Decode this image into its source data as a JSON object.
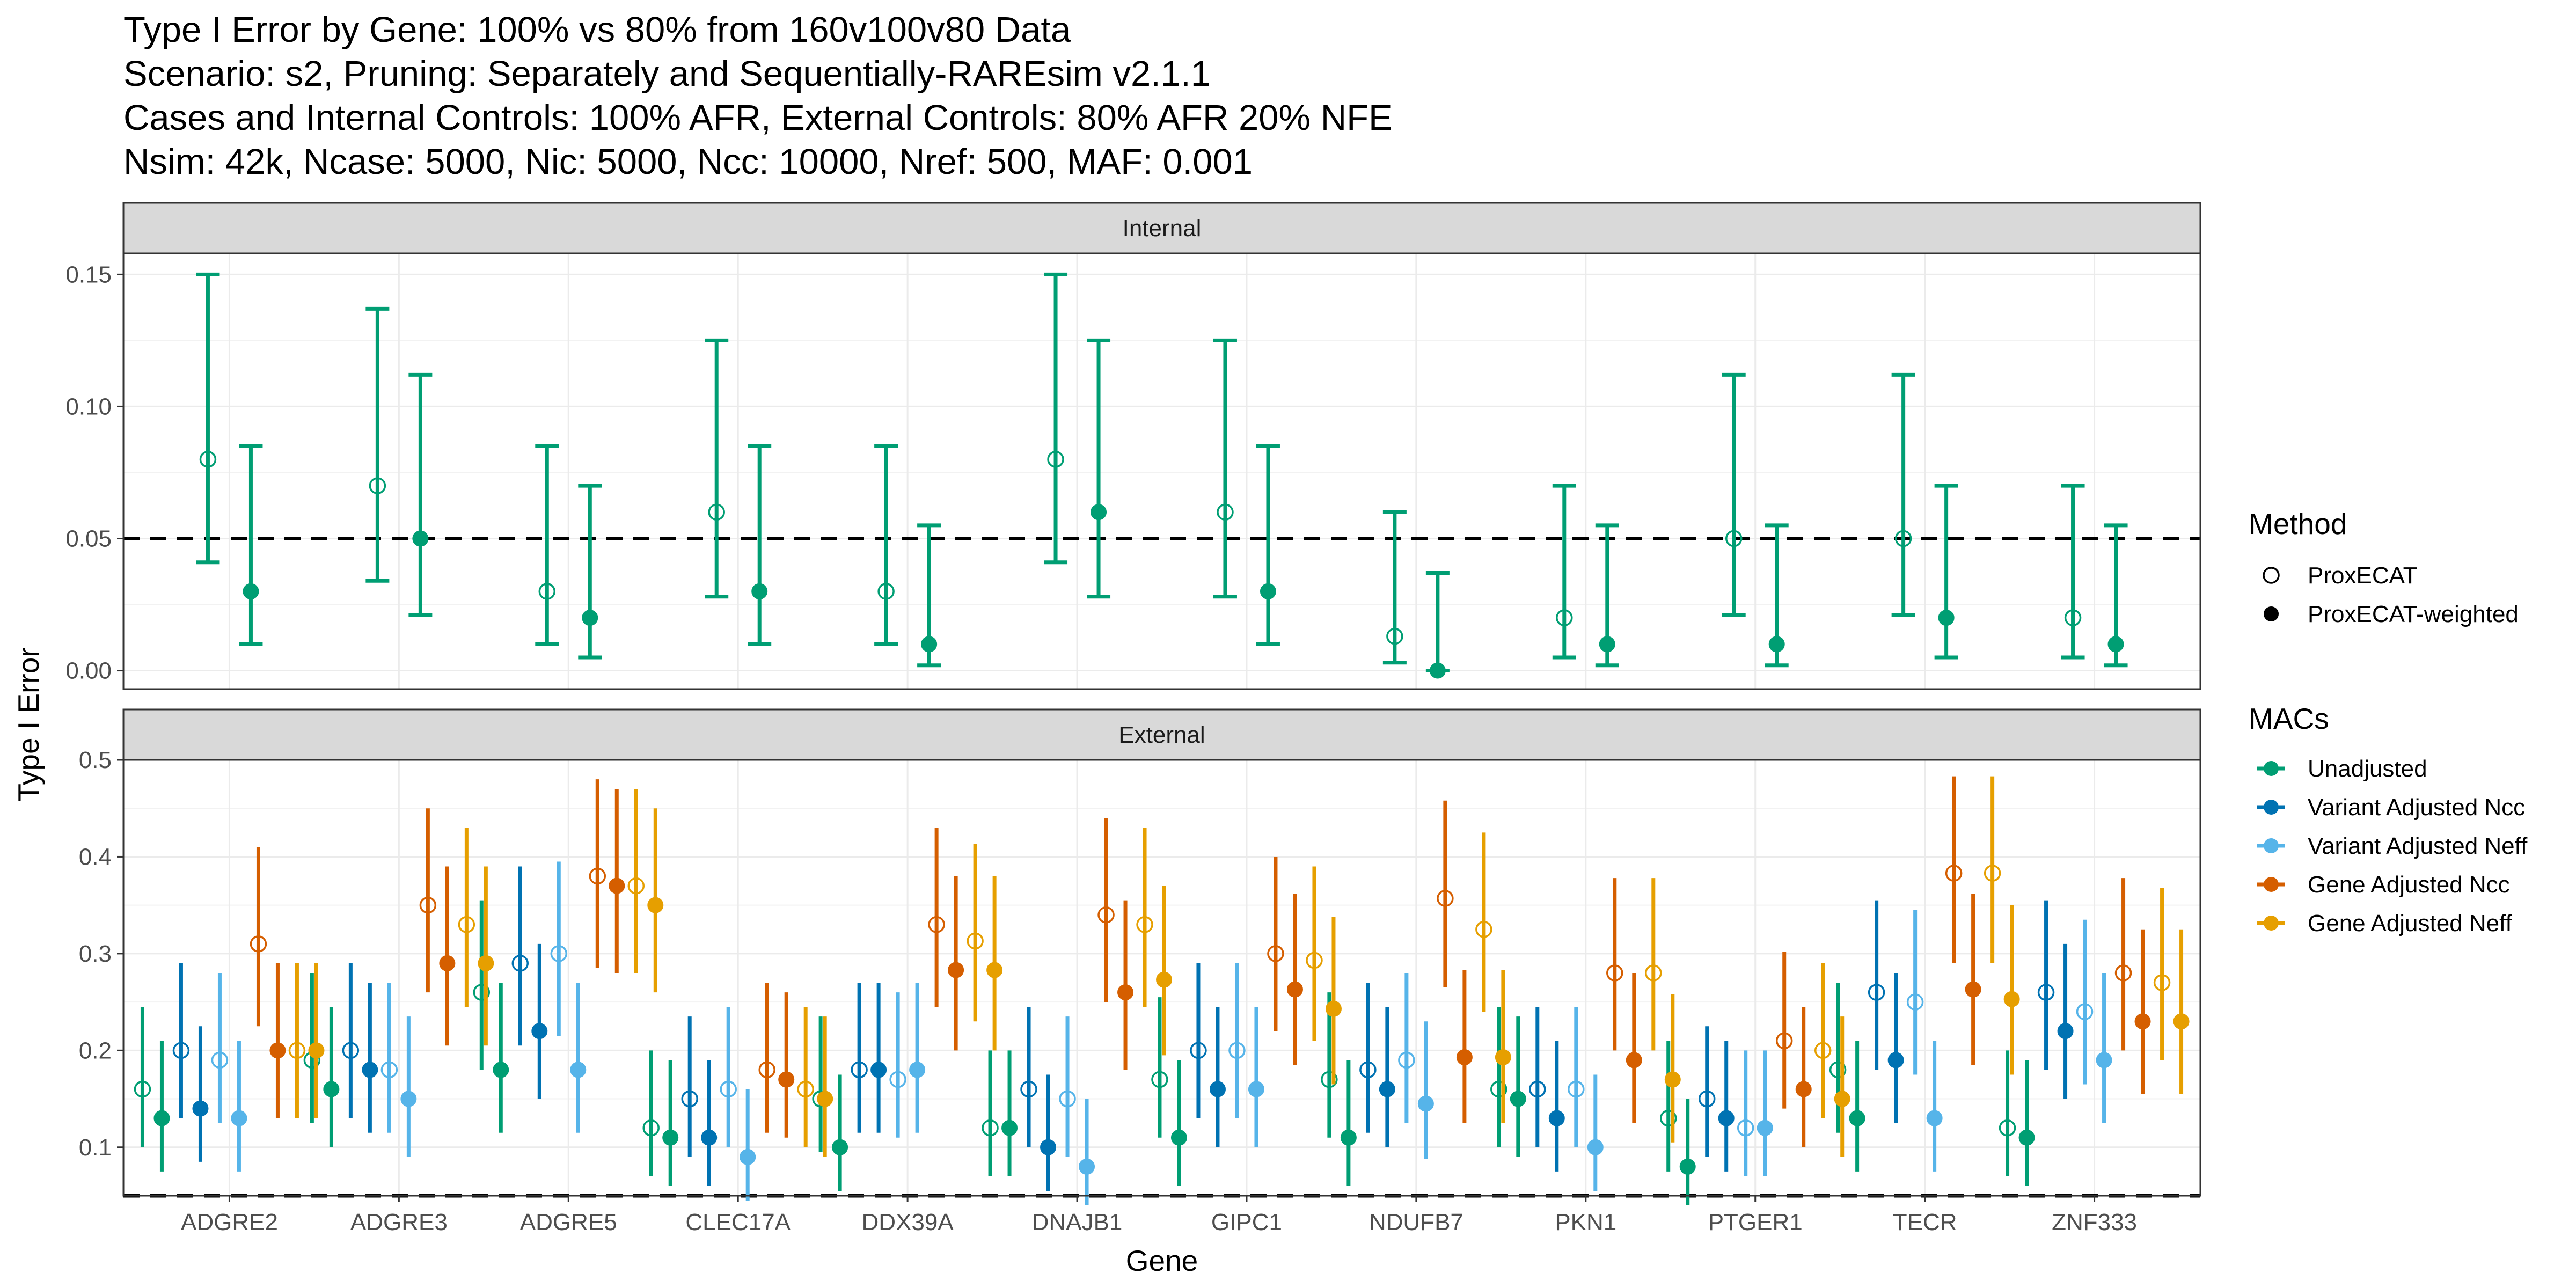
{
  "chart_data": {
    "type": "scatter",
    "title_lines": [
      "Type I Error by Gene: 100% vs 80% from 160v100v80 Data",
      "Scenario: s2, Pruning: Separately and Sequentially-RAREsim v2.1.1",
      "Cases and Internal Controls: 100% AFR, External Controls: 80% AFR 20% NFE",
      "Nsim: 42k, Ncase: 5000, Nic: 5000, Ncc: 10000, Nref: 500, MAF: 0.001"
    ],
    "xlabel": "Gene",
    "ylabel": "Type I Error",
    "categories": [
      "ADGRE2",
      "ADGRE3",
      "ADGRE5",
      "CLEC17A",
      "DDX39A",
      "DNAJB1",
      "GIPC1",
      "NDUFB7",
      "PKN1",
      "PTGER1",
      "TECR",
      "ZNF333"
    ],
    "reference_line": 0.05,
    "grid": true,
    "legend_placement": "right",
    "legend": {
      "method_title": "Method",
      "methods": [
        {
          "key": "prox",
          "label": "ProxECAT",
          "shape": "open-circle"
        },
        {
          "key": "proxw",
          "label": "ProxECAT-weighted",
          "shape": "filled-circle"
        }
      ],
      "macs_title": "MACs",
      "macs": [
        {
          "key": "unadj",
          "label": "Unadjusted",
          "color": "#009E73"
        },
        {
          "key": "vncc",
          "label": "Variant Adjusted Ncc",
          "color": "#0072B2"
        },
        {
          "key": "vneff",
          "label": "Variant Adjusted Neff",
          "color": "#56B4E9"
        },
        {
          "key": "gncc",
          "label": "Gene Adjusted Ncc",
          "color": "#D55E00"
        },
        {
          "key": "gneff",
          "label": "Gene Adjusted Neff",
          "color": "#E69F00"
        }
      ]
    },
    "panels": [
      {
        "strip": "Internal",
        "ylim": [
          -0.007,
          0.158
        ],
        "yticks": [
          0.0,
          0.05,
          0.1,
          0.15
        ],
        "ytick_labels": [
          "0.00",
          "0.05",
          "0.10",
          "0.15"
        ],
        "series": [
          {
            "method": "prox",
            "mac": "unadj",
            "values": [
              0.08,
              0.07,
              0.03,
              0.06,
              0.03,
              0.08,
              0.06,
              0.013,
              0.02,
              0.05,
              0.05,
              0.02
            ],
            "lower": [
              0.041,
              0.034,
              0.01,
              0.028,
              0.01,
              0.041,
              0.028,
              0.003,
              0.005,
              0.021,
              0.021,
              0.005
            ],
            "upper": [
              0.15,
              0.137,
              0.085,
              0.125,
              0.085,
              0.15,
              0.125,
              0.06,
              0.07,
              0.112,
              0.112,
              0.07
            ]
          },
          {
            "method": "proxw",
            "mac": "unadj",
            "values": [
              0.03,
              0.05,
              0.02,
              0.03,
              0.01,
              0.06,
              0.03,
              0.0,
              0.01,
              0.01,
              0.02,
              0.01
            ],
            "lower": [
              0.01,
              0.021,
              0.005,
              0.01,
              0.002,
              0.028,
              0.01,
              0.0,
              0.002,
              0.002,
              0.005,
              0.002
            ],
            "upper": [
              0.085,
              0.112,
              0.07,
              0.085,
              0.055,
              0.125,
              0.085,
              0.037,
              0.055,
              0.055,
              0.07,
              0.055
            ]
          }
        ]
      },
      {
        "strip": "External",
        "ylim": [
          0.05,
          0.5
        ],
        "yticks": [
          0.1,
          0.2,
          0.3,
          0.4,
          0.5
        ],
        "ytick_labels": [
          "0.1",
          "0.2",
          "0.3",
          "0.4",
          "0.5"
        ],
        "series": [
          {
            "method": "prox",
            "mac": "unadj",
            "values": [
              0.16,
              0.19,
              0.26,
              0.12,
              0.15,
              0.12,
              0.17,
              0.17,
              0.16,
              0.13,
              0.18,
              0.12
            ],
            "lower": [
              0.1,
              0.125,
              0.18,
              0.07,
              0.095,
              0.07,
              0.11,
              0.11,
              0.1,
              0.075,
              0.115,
              0.07
            ],
            "upper": [
              0.245,
              0.28,
              0.355,
              0.2,
              0.235,
              0.2,
              0.255,
              0.26,
              0.245,
              0.21,
              0.27,
              0.2
            ]
          },
          {
            "method": "proxw",
            "mac": "unadj",
            "values": [
              0.13,
              0.16,
              0.18,
              0.11,
              0.1,
              0.12,
              0.11,
              0.11,
              0.15,
              0.08,
              0.13,
              0.11
            ],
            "lower": [
              0.075,
              0.1,
              0.115,
              0.06,
              0.055,
              0.07,
              0.06,
              0.06,
              0.09,
              0.04,
              0.075,
              0.06
            ],
            "upper": [
              0.21,
              0.245,
              0.27,
              0.19,
              0.175,
              0.2,
              0.19,
              0.19,
              0.235,
              0.15,
              0.21,
              0.19
            ]
          },
          {
            "method": "prox",
            "mac": "vncc",
            "values": [
              0.2,
              0.2,
              0.29,
              0.15,
              0.18,
              0.16,
              0.2,
              0.18,
              0.16,
              0.15,
              0.26,
              0.26
            ],
            "lower": [
              0.13,
              0.13,
              0.205,
              0.09,
              0.115,
              0.1,
              0.13,
              0.115,
              0.1,
              0.09,
              0.18,
              0.18
            ],
            "upper": [
              0.29,
              0.29,
              0.39,
              0.235,
              0.27,
              0.245,
              0.29,
              0.27,
              0.245,
              0.225,
              0.355,
              0.355
            ]
          },
          {
            "method": "proxw",
            "mac": "vncc",
            "values": [
              0.14,
              0.18,
              0.22,
              0.11,
              0.18,
              0.1,
              0.16,
              0.16,
              0.13,
              0.13,
              0.19,
              0.22
            ],
            "lower": [
              0.085,
              0.115,
              0.15,
              0.06,
              0.115,
              0.055,
              0.1,
              0.1,
              0.075,
              0.075,
              0.125,
              0.15
            ],
            "upper": [
              0.225,
              0.27,
              0.31,
              0.19,
              0.27,
              0.175,
              0.245,
              0.245,
              0.21,
              0.21,
              0.28,
              0.31
            ]
          },
          {
            "method": "prox",
            "mac": "vneff",
            "values": [
              0.19,
              0.18,
              0.3,
              0.16,
              0.17,
              0.15,
              0.2,
              0.19,
              0.16,
              0.12,
              0.25,
              0.24
            ],
            "lower": [
              0.125,
              0.115,
              0.215,
              0.1,
              0.11,
              0.09,
              0.13,
              0.125,
              0.1,
              0.07,
              0.175,
              0.165
            ],
            "upper": [
              0.28,
              0.27,
              0.395,
              0.245,
              0.26,
              0.235,
              0.29,
              0.28,
              0.245,
              0.2,
              0.345,
              0.335
            ]
          },
          {
            "method": "proxw",
            "mac": "vneff",
            "values": [
              0.13,
              0.15,
              0.18,
              0.09,
              0.18,
              0.08,
              0.16,
              0.145,
              0.1,
              0.12,
              0.13,
              0.19
            ],
            "lower": [
              0.075,
              0.09,
              0.115,
              0.045,
              0.115,
              0.04,
              0.1,
              0.088,
              0.055,
              0.07,
              0.075,
              0.125
            ],
            "upper": [
              0.21,
              0.235,
              0.27,
              0.16,
              0.27,
              0.15,
              0.245,
              0.23,
              0.175,
              0.2,
              0.21,
              0.28
            ]
          },
          {
            "method": "prox",
            "mac": "gncc",
            "values": [
              0.31,
              0.35,
              0.38,
              0.18,
              0.33,
              0.34,
              0.3,
              0.357,
              0.28,
              0.21,
              0.383,
              0.28
            ],
            "lower": [
              0.225,
              0.26,
              0.285,
              0.115,
              0.245,
              0.25,
              0.22,
              0.265,
              0.2,
              0.14,
              0.29,
              0.2
            ],
            "upper": [
              0.41,
              0.45,
              0.48,
              0.27,
              0.43,
              0.44,
              0.4,
              0.458,
              0.378,
              0.302,
              0.483,
              0.378
            ]
          },
          {
            "method": "proxw",
            "mac": "gncc",
            "values": [
              0.2,
              0.29,
              0.37,
              0.17,
              0.283,
              0.26,
              0.263,
              0.193,
              0.19,
              0.16,
              0.263,
              0.23
            ],
            "lower": [
              0.13,
              0.205,
              0.28,
              0.11,
              0.2,
              0.18,
              0.185,
              0.125,
              0.125,
              0.1,
              0.185,
              0.155
            ],
            "upper": [
              0.29,
              0.39,
              0.47,
              0.26,
              0.38,
              0.355,
              0.362,
              0.283,
              0.28,
              0.245,
              0.362,
              0.325
            ]
          },
          {
            "method": "prox",
            "mac": "gneff",
            "values": [
              0.2,
              0.33,
              0.37,
              0.16,
              0.313,
              0.33,
              0.293,
              0.325,
              0.28,
              0.2,
              0.383,
              0.27
            ],
            "lower": [
              0.13,
              0.245,
              0.28,
              0.1,
              0.23,
              0.245,
              0.21,
              0.24,
              0.2,
              0.13,
              0.29,
              0.19
            ],
            "upper": [
              0.29,
              0.43,
              0.47,
              0.245,
              0.413,
              0.43,
              0.39,
              0.425,
              0.378,
              0.29,
              0.483,
              0.368
            ]
          },
          {
            "method": "proxw",
            "mac": "gneff",
            "values": [
              0.2,
              0.29,
              0.35,
              0.15,
              0.283,
              0.273,
              0.243,
              0.193,
              0.17,
              0.15,
              0.253,
              0.23
            ],
            "lower": [
              0.13,
              0.205,
              0.26,
              0.09,
              0.2,
              0.195,
              0.165,
              0.125,
              0.105,
              0.09,
              0.175,
              0.155
            ],
            "upper": [
              0.29,
              0.39,
              0.45,
              0.235,
              0.38,
              0.37,
              0.338,
              0.283,
              0.258,
              0.235,
              0.35,
              0.325
            ]
          }
        ]
      }
    ]
  }
}
